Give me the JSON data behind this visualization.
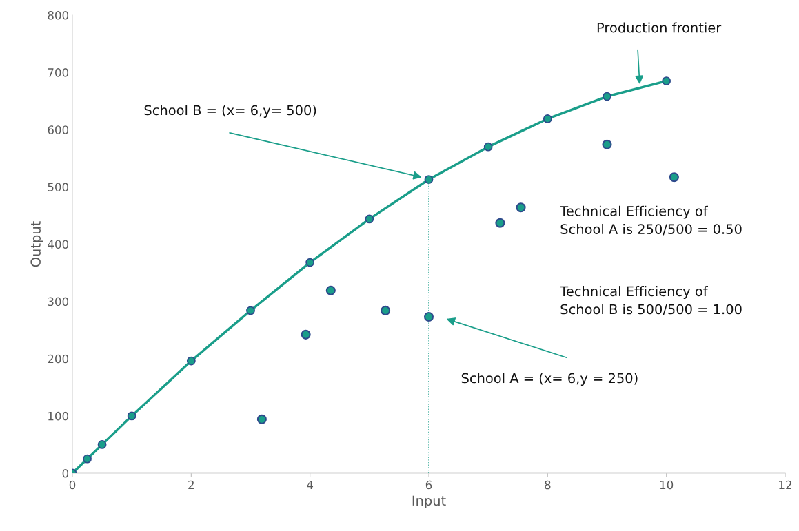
{
  "chart_data": {
    "type": "scatter",
    "xlabel": "Input",
    "ylabel": "Output",
    "xlim": [
      0,
      12
    ],
    "xticks": [
      0,
      2,
      4,
      6,
      8,
      10,
      12
    ],
    "ylim": [
      0,
      800
    ],
    "yticks": [
      0,
      100,
      200,
      300,
      400,
      500,
      600,
      700,
      800
    ],
    "grid": false,
    "legend": false,
    "marker": "circle",
    "series": [
      {
        "type": "line",
        "color": "#1a9e8a",
        "line_style": "solid",
        "x": [
          0,
          0.25,
          0.5,
          1,
          2,
          3,
          4,
          5,
          6,
          7,
          8,
          9,
          10
        ],
        "values": [
          0,
          25,
          50,
          100,
          196,
          284,
          368,
          444,
          513,
          570,
          619,
          658,
          685
        ]
      },
      {
        "color": "#1a9e8a",
        "x": [
          3.19,
          3.93,
          4.35,
          5.27,
          6.0,
          7.2,
          7.55,
          9.0,
          10.13
        ],
        "values": [
          94,
          242,
          319,
          284,
          273,
          437,
          464,
          574,
          517
        ]
      },
      {
        "type": "line",
        "color": "#1a9e8a",
        "line_style": "dotted",
        "marker": "none",
        "x": [
          6,
          6
        ],
        "values": [
          0,
          513
        ]
      }
    ],
    "annotations": [
      "Production frontier",
      "School B = (x= 6,y= 500)",
      "School A = (x= 6,y = 250)",
      "Technical Efficiency of\nSchool A is 250/500 = 0.50",
      "Technical Efficiency of\nSchool B is 500/500 = 1.00"
    ]
  }
}
